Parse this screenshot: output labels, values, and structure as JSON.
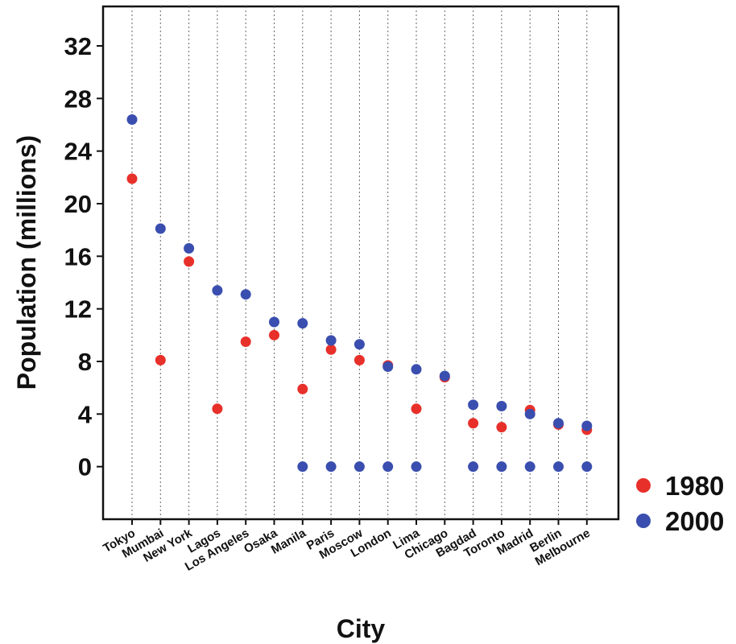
{
  "chart_data": {
    "type": "scatter",
    "title": "",
    "xlabel": "City",
    "ylabel": "Population (millions)",
    "ylim": [
      -4,
      35
    ],
    "yticks": [
      0,
      4,
      8,
      12,
      16,
      20,
      24,
      28,
      32
    ],
    "grid": "vertical dotted lines at each category",
    "legend_position": "right",
    "categories": [
      "Tokyo",
      "Mumbai",
      "New York",
      "Lagos",
      "Los Angeles",
      "Osaka",
      "Manila",
      "Paris",
      "Moscow",
      "London",
      "Lima",
      "Chicago",
      "Bagdad",
      "Toronto",
      "Madrid",
      "Berlin",
      "Melbourne"
    ],
    "series": [
      {
        "name": "1980",
        "color": "#e8302a",
        "values": [
          21.9,
          8.1,
          15.6,
          4.4,
          9.5,
          10.0,
          5.9,
          8.9,
          8.1,
          7.7,
          4.4,
          6.8,
          3.3,
          3.0,
          4.3,
          3.2,
          2.8
        ]
      },
      {
        "name": "2000",
        "color": "#3a4eaf",
        "values": [
          26.4,
          18.1,
          16.6,
          13.4,
          13.1,
          11.0,
          10.9,
          9.6,
          9.3,
          7.6,
          7.4,
          6.9,
          4.7,
          4.6,
          4.0,
          3.3,
          3.1
        ]
      },
      {
        "name": "",
        "color": "#3a4eaf",
        "values": [
          null,
          null,
          null,
          null,
          null,
          null,
          0,
          0,
          0,
          0,
          0,
          null,
          0,
          0,
          0,
          0,
          0
        ]
      }
    ]
  }
}
